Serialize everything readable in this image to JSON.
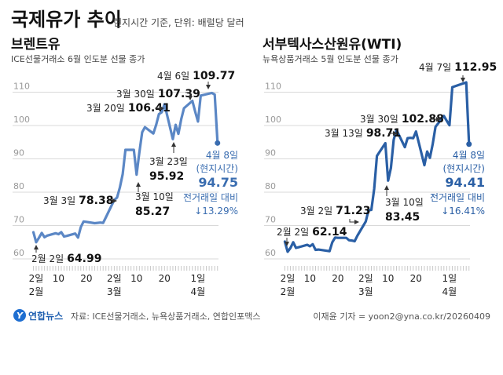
{
  "header": {
    "title": "국제유가 추이",
    "subtitle": "현지시간 기준, 단위: 배럴당 달러"
  },
  "footer": {
    "logo_text": "연합뉴스",
    "source": "자료: ICE선물거래소, 뉴욕상품거래소, 연합인포맥스",
    "credit": "이재윤 기자 = yoon2@yna.co.kr/20260409"
  },
  "chart_data": [
    {
      "type": "line",
      "title": "브렌트유",
      "subtitle": "ICE선물거래소 6월 인도분 선물 종가",
      "color": "#5b87c5",
      "ylim": [
        60,
        110
      ],
      "yticks": [
        "60",
        "70",
        "80",
        "90",
        "100",
        "110"
      ],
      "grid": true,
      "xticks": [
        {
          "date": "02-02",
          "label": "2일",
          "month": "2월"
        },
        {
          "date": "02-10",
          "label": "10"
        },
        {
          "date": "02-20",
          "label": "20"
        },
        {
          "date": "03-02",
          "label": "2일",
          "month": "3월"
        },
        {
          "date": "03-10",
          "label": "10"
        },
        {
          "date": "03-20",
          "label": "20"
        },
        {
          "date": "04-01",
          "label": "1일",
          "month": "4월"
        }
      ],
      "x": [
        "02-01",
        "02-02",
        "02-03",
        "02-04",
        "02-05",
        "02-06",
        "02-09",
        "02-10",
        "02-11",
        "02-12",
        "02-13",
        "02-16",
        "02-17",
        "02-18",
        "02-19",
        "02-20",
        "02-23",
        "02-24",
        "02-25",
        "02-26",
        "02-27",
        "03-02",
        "03-03",
        "03-04",
        "03-05",
        "03-06",
        "03-09",
        "03-10",
        "03-11",
        "03-12",
        "03-13",
        "03-16",
        "03-17",
        "03-18",
        "03-19",
        "03-20",
        "03-23",
        "03-24",
        "03-25",
        "03-26",
        "03-27",
        "03-30",
        "03-31",
        "04-01",
        "04-02",
        "04-06",
        "04-07",
        "04-08"
      ],
      "values": [
        68.0,
        64.99,
        66.3,
        67.8,
        66.5,
        67.0,
        67.7,
        67.4,
        68.0,
        66.7,
        66.9,
        67.6,
        66.4,
        69.5,
        71.2,
        71.1,
        70.7,
        70.8,
        70.9,
        70.8,
        72.5,
        77.7,
        78.38,
        81.4,
        85.4,
        92.7,
        92.7,
        85.27,
        91.9,
        98.0,
        99.5,
        97.6,
        100.2,
        103.4,
        104.0,
        106.41,
        95.92,
        100.2,
        97.5,
        101.9,
        105.2,
        107.39,
        104.2,
        101.2,
        109.0,
        109.77,
        109.3,
        94.75
      ],
      "annotations": [
        {
          "date_label": "4월 6일",
          "value": "109.77"
        },
        {
          "date_label": "3월 30일",
          "value": "107.39"
        },
        {
          "date_label": "3월 20일",
          "value": "106.41"
        },
        {
          "date_label": "3월 23일",
          "value": "95.92"
        },
        {
          "date_label": "3월 10일",
          "value": "85.27"
        },
        {
          "date_label": "3월 3일",
          "value": "78.38"
        },
        {
          "date_label": "2월 2일",
          "value": "64.99"
        }
      ],
      "final": {
        "date_label": "4월 8일",
        "note": "(현지시간)",
        "value": "94.75",
        "change_label": "전거래일 대비",
        "change": "↓13.29%",
        "color": "#3a6db0"
      }
    },
    {
      "type": "line",
      "title": "서부텍사스산원유(WTI)",
      "subtitle": "뉴욕상품거래소 5월 인도분 선물 종가",
      "color": "#2a5fa5",
      "ylim": [
        60,
        110
      ],
      "yticks": [
        "60",
        "70",
        "80",
        "90",
        "100",
        "110"
      ],
      "grid": true,
      "xticks": [
        {
          "date": "02-02",
          "label": "2일",
          "month": "2월"
        },
        {
          "date": "02-10",
          "label": "10"
        },
        {
          "date": "02-20",
          "label": "20"
        },
        {
          "date": "03-02",
          "label": "2일",
          "month": "3월"
        },
        {
          "date": "03-10",
          "label": "10"
        },
        {
          "date": "03-20",
          "label": "20"
        },
        {
          "date": "04-01",
          "label": "1일",
          "month": "4월"
        }
      ],
      "x": [
        "02-01",
        "02-02",
        "02-03",
        "02-04",
        "02-05",
        "02-06",
        "02-09",
        "02-10",
        "02-11",
        "02-12",
        "02-13",
        "02-17",
        "02-18",
        "02-19",
        "02-20",
        "02-23",
        "02-24",
        "02-25",
        "02-26",
        "02-27",
        "03-02",
        "03-03",
        "03-04",
        "03-05",
        "03-06",
        "03-09",
        "03-10",
        "03-11",
        "03-12",
        "03-13",
        "03-16",
        "03-17",
        "03-18",
        "03-19",
        "03-20",
        "03-23",
        "03-24",
        "03-25",
        "03-26",
        "03-27",
        "03-30",
        "03-31",
        "04-01",
        "04-02",
        "04-07",
        "04-08"
      ],
      "values": [
        65.2,
        62.14,
        63.3,
        65.0,
        63.3,
        63.5,
        64.2,
        63.8,
        64.4,
        62.7,
        62.8,
        62.3,
        65.0,
        66.4,
        66.3,
        66.3,
        65.6,
        65.5,
        65.3,
        67.0,
        71.23,
        74.6,
        74.7,
        81.0,
        90.9,
        94.7,
        83.45,
        87.3,
        95.7,
        98.71,
        93.5,
        96.2,
        96.3,
        96.2,
        98.2,
        88.1,
        92.2,
        90.3,
        94.5,
        99.6,
        102.88,
        101.4,
        100.1,
        111.5,
        112.95,
        94.41
      ],
      "annotations": [
        {
          "date_label": "4월 7일",
          "value": "112.95"
        },
        {
          "date_label": "3월 30일",
          "value": "102.88"
        },
        {
          "date_label": "3월 13일",
          "value": "98.71"
        },
        {
          "date_label": "3월 10일",
          "value": "83.45"
        },
        {
          "date_label": "3월 2일",
          "value": "71.23"
        },
        {
          "date_label": "2월 2일",
          "value": "62.14"
        }
      ],
      "final": {
        "date_label": "4월 8일",
        "note": "(현지시간)",
        "value": "94.41",
        "change_label": "전거래일 대비",
        "change": "↓16.41%",
        "color": "#2a5fa5"
      }
    }
  ]
}
